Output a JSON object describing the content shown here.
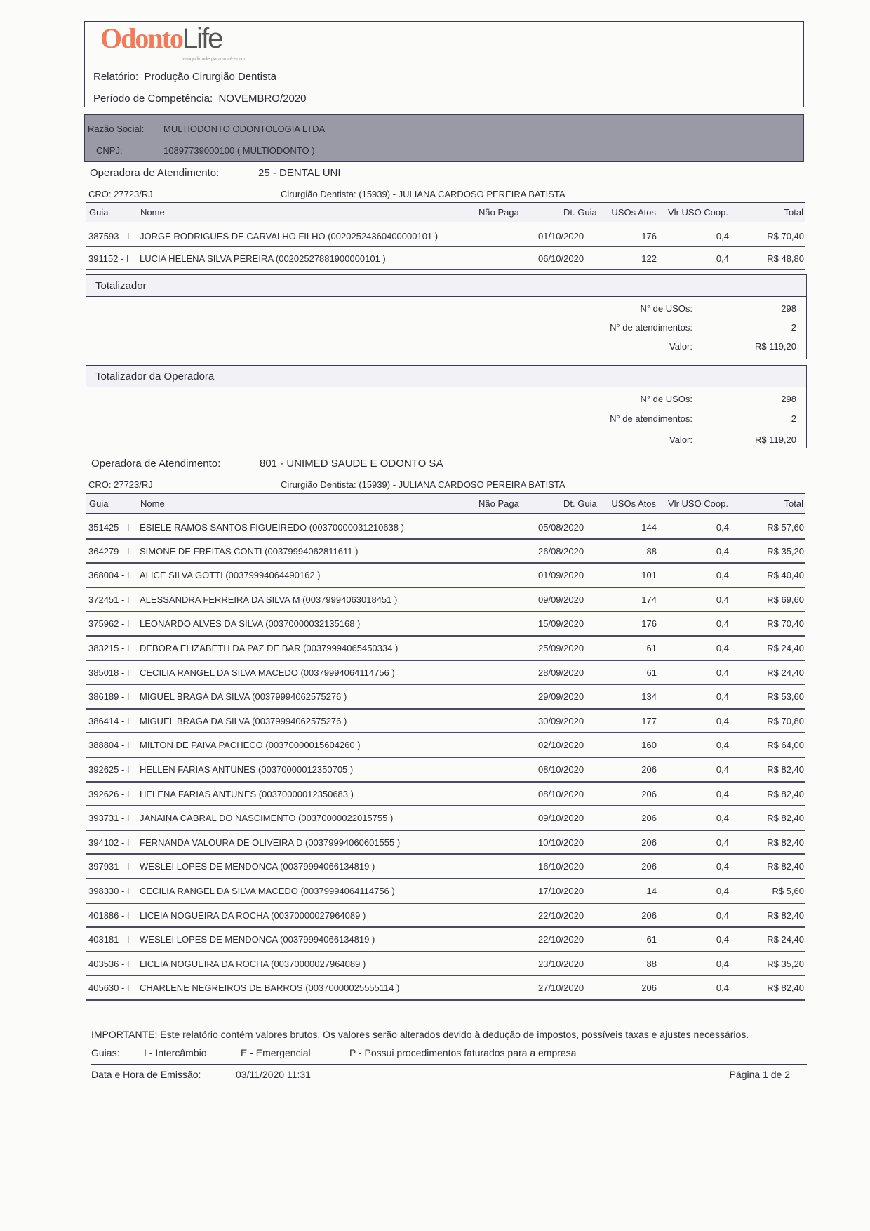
{
  "header": {
    "logo_text_1": "Odonto",
    "logo_text_2": "Life",
    "logo_tagline": "tranquilidade para você sorrir",
    "report_label": "Relatório:",
    "report_value": "Produção Cirurgião Dentista",
    "period_label": "Período de Competência:",
    "period_value": "NOVEMBRO/2020"
  },
  "company": {
    "razao_label": "Razão Social:",
    "razao_value": "MULTIODONTO ODONTOLOGIA LTDA",
    "cnpj_label": "CNPJ:",
    "cnpj_value": "10897739000100 ( MULTIODONTO )"
  },
  "columns": {
    "guia": "Guia",
    "nome": "Nome",
    "nao_paga": "Não Paga",
    "dt_guia": "Dt. Guia",
    "usos": "USOs Atos",
    "vlr": "Vlr USO Coop.",
    "total": "Total"
  },
  "sections": [
    {
      "operadora_label": "Operadora de Atendimento:",
      "operadora_value": "25 - DENTAL UNI",
      "cro": "CRO:  27723/RJ",
      "dentista": "Cirurgião Dentista: (15939) - JULIANA CARDOSO PEREIRA BATISTA",
      "rows": [
        [
          "387593 - I",
          "JORGE RODRIGUES DE CARVALHO FILHO (00202524360400000101 )",
          "",
          "01/10/2020",
          "176",
          "0,4",
          "R$ 70,40"
        ],
        [
          "391152 - I",
          "LUCIA HELENA SILVA PEREIRA (00202527881900000101 )",
          "",
          "06/10/2020",
          "122",
          "0,4",
          "R$ 48,80"
        ]
      ]
    },
    {
      "operadora_label": "Operadora de Atendimento:",
      "operadora_value": "801 - UNIMED SAUDE E ODONTO SA",
      "cro": "CRO:  27723/RJ",
      "dentista": "Cirurgião Dentista: (15939) - JULIANA CARDOSO PEREIRA BATISTA",
      "rows": [
        [
          "351425 - I",
          "ESIELE RAMOS SANTOS FIGUEIREDO (00370000031210638 )",
          "",
          "05/08/2020",
          "144",
          "0,4",
          "R$ 57,60"
        ],
        [
          "364279 - I",
          "SIMONE DE FREITAS CONTI (00379994062811611 )",
          "",
          "26/08/2020",
          "88",
          "0,4",
          "R$ 35,20"
        ],
        [
          "368004 - I",
          "ALICE SILVA GOTTI (00379994064490162 )",
          "",
          "01/09/2020",
          "101",
          "0,4",
          "R$ 40,40"
        ],
        [
          "372451 - I",
          "ALESSANDRA FERREIRA DA SILVA M (00379994063018451 )",
          "",
          "09/09/2020",
          "174",
          "0,4",
          "R$ 69,60"
        ],
        [
          "375962 - I",
          "LEONARDO ALVES DA SILVA (00370000032135168 )",
          "",
          "15/09/2020",
          "176",
          "0,4",
          "R$ 70,40"
        ],
        [
          "383215 - I",
          "DEBORA ELIZABETH DA PAZ DE BAR (00379994065450334 )",
          "",
          "25/09/2020",
          "61",
          "0,4",
          "R$ 24,40"
        ],
        [
          "385018 - I",
          "CECILIA RANGEL DA SILVA MACEDO (00379994064114756 )",
          "",
          "28/09/2020",
          "61",
          "0,4",
          "R$ 24,40"
        ],
        [
          "386189 - I",
          "MIGUEL BRAGA DA SILVA (00379994062575276 )",
          "",
          "29/09/2020",
          "134",
          "0,4",
          "R$ 53,60"
        ],
        [
          "386414 - I",
          "MIGUEL BRAGA DA SILVA (00379994062575276 )",
          "",
          "30/09/2020",
          "177",
          "0,4",
          "R$ 70,80"
        ],
        [
          "388804 - I",
          "MILTON DE PAIVA PACHECO (00370000015604260 )",
          "",
          "02/10/2020",
          "160",
          "0,4",
          "R$ 64,00"
        ],
        [
          "392625 - I",
          "HELLEN FARIAS ANTUNES (00370000012350705 )",
          "",
          "08/10/2020",
          "206",
          "0,4",
          "R$ 82,40"
        ],
        [
          "392626 - I",
          "HELENA FARIAS ANTUNES (00370000012350683 )",
          "",
          "08/10/2020",
          "206",
          "0,4",
          "R$ 82,40"
        ],
        [
          "393731 - I",
          "JANAINA CABRAL DO NASCIMENTO (00370000022015755 )",
          "",
          "09/10/2020",
          "206",
          "0,4",
          "R$ 82,40"
        ],
        [
          "394102 - I",
          "FERNANDA VALOURA DE OLIVEIRA D (00379994060601555 )",
          "",
          "10/10/2020",
          "206",
          "0,4",
          "R$ 82,40"
        ],
        [
          "397931 - I",
          "WESLEI LOPES DE MENDONCA (00379994066134819 )",
          "",
          "16/10/2020",
          "206",
          "0,4",
          "R$ 82,40"
        ],
        [
          "398330 - I",
          "CECILIA RANGEL DA SILVA MACEDO (00379994064114756 )",
          "",
          "17/10/2020",
          "14",
          "0,4",
          "R$ 5,60"
        ],
        [
          "401886 - I",
          "LICEIA NOGUEIRA DA ROCHA (00370000027964089 )",
          "",
          "22/10/2020",
          "206",
          "0,4",
          "R$ 82,40"
        ],
        [
          "403181 - I",
          "WESLEI LOPES DE MENDONCA (00379994066134819 )",
          "",
          "22/10/2020",
          "61",
          "0,4",
          "R$ 24,40"
        ],
        [
          "403536 - I",
          "LICEIA NOGUEIRA DA ROCHA (00370000027964089 )",
          "",
          "23/10/2020",
          "88",
          "0,4",
          "R$ 35,20"
        ],
        [
          "405630 - I",
          "CHARLENE NEGREIROS DE BARROS (00370000025555114 )",
          "",
          "27/10/2020",
          "206",
          "0,4",
          "R$ 82,40"
        ]
      ]
    }
  ],
  "totalizador": {
    "title": "Totalizador",
    "usos_label": "N° de USOs:",
    "usos": "298",
    "atend_label": "N° de atendimentos:",
    "atend": "2",
    "valor_label": "Valor:",
    "valor": "R$ 119,20"
  },
  "totalizador_operadora": {
    "title": "Totalizador da Operadora",
    "usos_label": "N° de USOs:",
    "usos": "298",
    "atend_label": "N° de atendimentos:",
    "atend": "2",
    "valor_label": "Valor:",
    "valor": "R$ 119,20"
  },
  "footer": {
    "important": "IMPORTANTE: Este relatório contém valores brutos. Os valores serão alterados devido à dedução de impostos, possíveis taxas e ajustes necessários.",
    "guias_label": "Guias:",
    "legend_i": "I - Intercâmbio",
    "legend_e": "E - Emergencial",
    "legend_p": "P - Possui procedimentos faturados para a empresa",
    "emissao_label": "Data e Hora de Emissão:",
    "emissao_value": "03/11/2020  11:31",
    "page": "Página 1 de 2"
  },
  "colors": {
    "logo_orange": "#f07a5a",
    "company_band": "#9a9aa6"
  }
}
